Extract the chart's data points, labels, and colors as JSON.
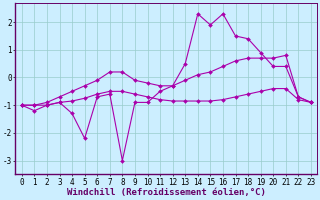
{
  "x": [
    0,
    1,
    2,
    3,
    4,
    5,
    6,
    7,
    8,
    9,
    10,
    11,
    12,
    13,
    14,
    15,
    16,
    17,
    18,
    19,
    20,
    21,
    22,
    23
  ],
  "line1": [
    -1.0,
    -1.2,
    -1.0,
    -0.9,
    -1.3,
    -2.2,
    -0.7,
    -0.6,
    -3.0,
    -0.9,
    -0.9,
    -0.5,
    -0.3,
    0.5,
    2.3,
    1.9,
    2.3,
    1.5,
    1.4,
    0.9,
    0.4,
    0.4,
    -0.7,
    -0.9
  ],
  "line2": [
    -1.0,
    -1.0,
    -1.0,
    -0.9,
    -0.85,
    -0.75,
    -0.6,
    -0.5,
    -0.5,
    -0.6,
    -0.7,
    -0.8,
    -0.85,
    -0.85,
    -0.85,
    -0.85,
    -0.8,
    -0.7,
    -0.6,
    -0.5,
    -0.4,
    -0.4,
    -0.8,
    -0.9
  ],
  "line3": [
    -1.0,
    -1.0,
    -0.9,
    -0.7,
    -0.5,
    -0.3,
    -0.1,
    0.2,
    0.2,
    -0.1,
    -0.2,
    -0.3,
    -0.3,
    -0.1,
    0.1,
    0.2,
    0.4,
    0.6,
    0.7,
    0.7,
    0.7,
    0.8,
    -0.7,
    -0.9
  ],
  "line_color": "#aa00aa",
  "bg_color": "#cceeff",
  "grid_color": "#99cccc",
  "ylim": [
    -3.5,
    2.7
  ],
  "xlim": [
    -0.5,
    23.5
  ],
  "xlabel": "Windchill (Refroidissement éolien,°C)",
  "xlabel_fontsize": 6.5,
  "tick_fontsize": 5.5
}
